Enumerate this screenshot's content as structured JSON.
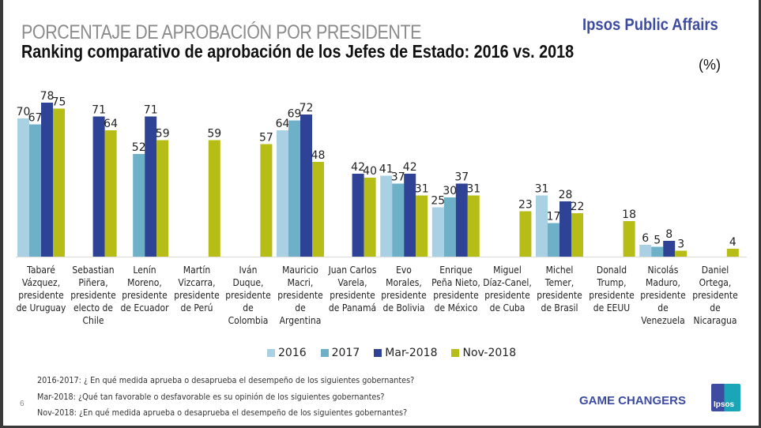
{
  "header": {
    "supertitle": "PORCENTAJE DE APROBACIÓN POR PRESIDENTE",
    "title": "Ranking comparativo de aprobación de los Jefes de Estado: 2016 vs. 2018",
    "unit": "(%)",
    "brand": "Ipsos Public Affairs"
  },
  "colors": {
    "2016": "#a9d1e3",
    "2017": "#6fb0c9",
    "Mar-2018": "#2e4396",
    "Nov-2018": "#b5bd16"
  },
  "chart_data": {
    "type": "bar",
    "title": "Ranking comparativo de aprobación de los Jefes de Estado: 2016 vs. 2018",
    "xlabel": "",
    "ylabel": "(%)",
    "ylim": [
      0,
      80
    ],
    "grid": false,
    "legend_position": "bottom",
    "categories": [
      "Tabaré Vázquez, presidente de Uruguay",
      "Sebastian Piñera, presidente electo de Chile",
      "Lenín Moreno, presidente de Ecuador",
      "Martín Vizcarra, presidente de Perú",
      "Iván Duque, presidente de Colombia",
      "Mauricio Macri, presidente de Argentina",
      "Juan Carlos Varela, presidente de Panamá",
      "Evo Morales, presidente de Bolivia",
      "Enrique Peña Nieto, presidente de México",
      "Miguel Díaz-Canel, presidente de Cuba",
      "Michel Temer, presidente de Brasil",
      "Donald Trump, presidente de EEUU",
      "Nicolás Maduro, presidente de Venezuela",
      "Daniel Ortega, presidente de Nicaragua"
    ],
    "series": [
      {
        "name": "2016",
        "values": [
          70,
          null,
          null,
          null,
          null,
          64,
          null,
          41,
          25,
          null,
          31,
          null,
          6,
          null
        ]
      },
      {
        "name": "2017",
        "values": [
          67,
          null,
          52,
          null,
          null,
          69,
          null,
          37,
          30,
          null,
          17,
          null,
          5,
          null
        ]
      },
      {
        "name": "Mar-2018",
        "values": [
          78,
          71,
          71,
          null,
          null,
          72,
          42,
          42,
          37,
          null,
          28,
          null,
          8,
          null
        ]
      },
      {
        "name": "Nov-2018",
        "values": [
          75,
          64,
          59,
          59,
          57,
          48,
          40,
          31,
          31,
          23,
          22,
          18,
          3,
          4
        ]
      }
    ]
  },
  "legend": [
    "2016",
    "2017",
    "Mar-2018",
    "Nov-2018"
  ],
  "notes": [
    "2016-2017: ¿ En qué medida aprueba o desaprueba el desempeño de los siguientes gobernantes?",
    "Mar-2018: ¿Qué tan favorable o desfavorable es su opinión de los siguientes gobernantes?",
    "Nov-2018: ¿En qué medida aprueba o desaprueba el desempeño de los siguientes gobernantes?"
  ],
  "footer": {
    "page_number": "6",
    "tagline": "GAME CHANGERS",
    "logo_text": "Ipsos"
  }
}
